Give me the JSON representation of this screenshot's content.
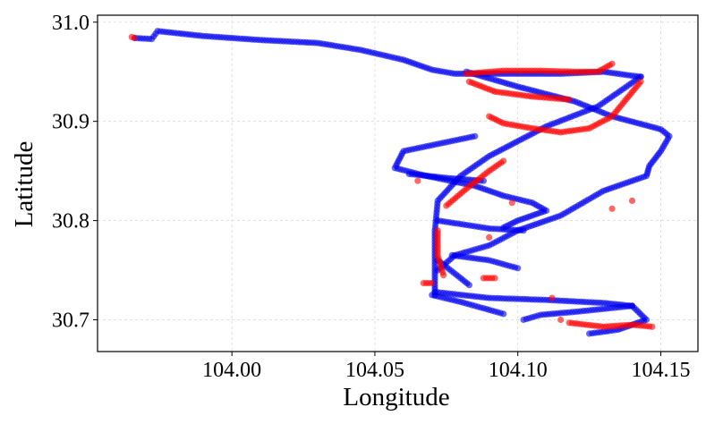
{
  "chart_data": {
    "type": "scatter",
    "title": "",
    "xlabel": "Longitude",
    "ylabel": "Latitude",
    "xlim": [
      103.953,
      104.163
    ],
    "ylim": [
      30.668,
      31.007
    ],
    "xticks": [
      104.0,
      104.05,
      104.1,
      104.15
    ],
    "xtick_labels": [
      "104.00",
      "104.05",
      "104.10",
      "104.15"
    ],
    "yticks": [
      30.7,
      30.8,
      30.9,
      31.0
    ],
    "ytick_labels": [
      "30.7",
      "30.8",
      "30.9",
      "31.0"
    ],
    "grid": true,
    "legend": "none",
    "series": [
      {
        "color": "#0000ee",
        "alpha": 0.6,
        "paths": [
          [
            [
              103.966,
              30.984
            ],
            [
              103.972,
              30.983
            ],
            [
              103.974,
              30.991
            ],
            [
              103.99,
              30.986
            ],
            [
              104.01,
              30.982
            ],
            [
              104.03,
              30.979
            ],
            [
              104.045,
              30.972
            ],
            [
              104.06,
              30.962
            ],
            [
              104.07,
              30.952
            ],
            [
              104.078,
              30.948
            ],
            [
              104.095,
              30.948
            ],
            [
              104.115,
              30.948
            ],
            [
              104.13,
              30.95
            ],
            [
              104.14,
              30.946
            ],
            [
              104.143,
              30.945
            ]
          ],
          [
            [
              104.143,
              30.945
            ],
            [
              104.128,
              30.915
            ],
            [
              104.11,
              30.895
            ],
            [
              104.09,
              30.865
            ],
            [
              104.08,
              30.845
            ],
            [
              104.072,
              30.82
            ],
            [
              104.071,
              30.79
            ],
            [
              104.071,
              30.75
            ],
            [
              104.071,
              30.725
            ]
          ],
          [
            [
              104.082,
              30.95
            ],
            [
              104.1,
              30.935
            ],
            [
              104.12,
              30.92
            ],
            [
              104.133,
              30.905
            ],
            [
              104.15,
              30.892
            ],
            [
              104.153,
              30.885
            ],
            [
              104.15,
              30.87
            ],
            [
              104.146,
              30.855
            ],
            [
              104.145,
              30.845
            ],
            [
              104.13,
              30.83
            ],
            [
              104.115,
              30.805
            ],
            [
              104.1,
              30.79
            ],
            [
              104.09,
              30.775
            ],
            [
              104.078,
              30.765
            ],
            [
              104.072,
              30.75
            ]
          ],
          [
            [
              104.085,
              30.885
            ],
            [
              104.06,
              30.87
            ],
            [
              104.057,
              30.853
            ],
            [
              104.068,
              30.845
            ],
            [
              104.085,
              30.835
            ],
            [
              104.095,
              30.825
            ],
            [
              104.105,
              30.818
            ],
            [
              104.11,
              30.81
            ],
            [
              104.1,
              30.8
            ],
            [
              104.095,
              30.793
            ]
          ],
          [
            [
              104.062,
              30.847
            ],
            [
              104.075,
              30.843
            ],
            [
              104.088,
              30.84
            ]
          ],
          [
            [
              104.072,
              30.8
            ],
            [
              104.09,
              30.792
            ],
            [
              104.102,
              30.79
            ]
          ],
          [
            [
              104.077,
              30.765
            ],
            [
              104.09,
              30.76
            ],
            [
              104.1,
              30.752
            ]
          ],
          [
            [
              104.072,
              30.76
            ],
            [
              104.08,
              30.742
            ],
            [
              104.083,
              30.735
            ]
          ],
          [
            [
              104.071,
              30.728
            ],
            [
              104.09,
              30.722
            ],
            [
              104.11,
              30.72
            ],
            [
              104.13,
              30.717
            ],
            [
              104.14,
              30.714
            ]
          ],
          [
            [
              104.14,
              30.714
            ],
            [
              104.12,
              30.708
            ],
            [
              104.108,
              30.705
            ],
            [
              104.102,
              30.7
            ]
          ],
          [
            [
              104.14,
              30.714
            ],
            [
              104.145,
              30.7
            ],
            [
              104.135,
              30.69
            ],
            [
              104.125,
              30.686
            ]
          ],
          [
            [
              104.07,
              30.725
            ],
            [
              104.08,
              30.718
            ],
            [
              104.09,
              30.71
            ],
            [
              104.095,
              30.706
            ]
          ]
        ]
      },
      {
        "color": "#ff0000",
        "alpha": 0.6,
        "paths": [
          [
            [
              103.965,
              30.985
            ],
            [
              103.966,
              30.984
            ]
          ],
          [
            [
              104.082,
              30.948
            ],
            [
              104.095,
              30.951
            ],
            [
              104.108,
              30.951
            ],
            [
              104.12,
              30.95
            ],
            [
              104.128,
              30.95
            ],
            [
              104.133,
              30.958
            ]
          ],
          [
            [
              104.083,
              30.94
            ],
            [
              104.092,
              30.93
            ],
            [
              104.105,
              30.925
            ],
            [
              104.118,
              30.922
            ]
          ],
          [
            [
              104.09,
              30.905
            ],
            [
              104.095,
              30.898
            ],
            [
              104.105,
              30.893
            ],
            [
              104.115,
              30.889
            ],
            [
              104.125,
              30.893
            ],
            [
              104.133,
              30.905
            ],
            [
              104.143,
              30.94
            ]
          ],
          [
            [
              104.075,
              30.815
            ],
            [
              104.082,
              30.832
            ],
            [
              104.09,
              30.85
            ],
            [
              104.095,
              30.86
            ]
          ],
          [
            [
              104.072,
              30.79
            ],
            [
              104.072,
              30.765
            ],
            [
              104.074,
              30.745
            ]
          ],
          [
            [
              104.067,
              30.737
            ],
            [
              104.07,
              30.737
            ]
          ],
          [
            [
              104.088,
              30.742
            ],
            [
              104.092,
              30.742
            ]
          ],
          [
            [
              104.118,
              30.697
            ],
            [
              104.13,
              30.693
            ],
            [
              104.14,
              30.695
            ],
            [
              104.147,
              30.693
            ]
          ]
        ],
        "points": [
          [
            104.065,
            30.84
          ],
          [
            104.098,
            30.818
          ],
          [
            104.14,
            30.82
          ],
          [
            104.133,
            30.812
          ],
          [
            104.112,
            30.722
          ],
          [
            104.115,
            30.7
          ],
          [
            104.09,
            30.783
          ]
        ]
      }
    ]
  }
}
